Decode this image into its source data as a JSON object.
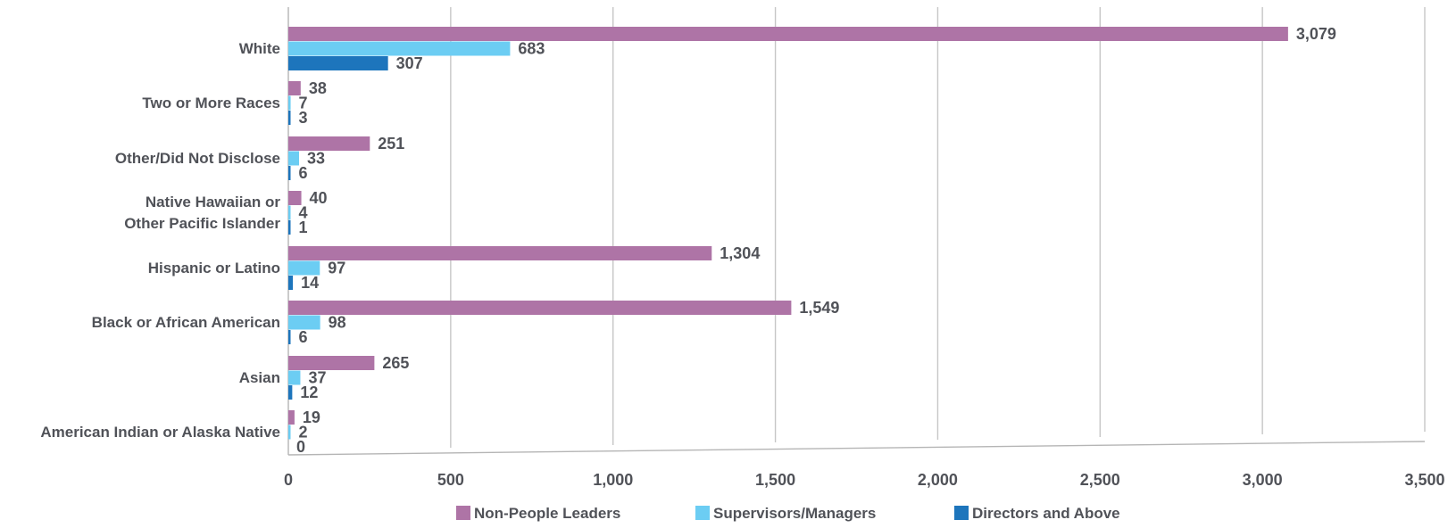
{
  "chart_data": {
    "type": "bar",
    "orientation": "horizontal",
    "categories": [
      "White",
      "Two or More Races",
      "Other/Did Not Disclose",
      "Native Hawaiian or Other Pacific Islander",
      "Hispanic or Latino",
      "Black or African American",
      "Asian",
      "American Indian or Alaska Native"
    ],
    "category_lines": [
      [
        "White"
      ],
      [
        "Two or More Races"
      ],
      [
        "Other/Did Not Disclose"
      ],
      [
        "Native Hawaiian or",
        "Other Pacific Islander"
      ],
      [
        "Hispanic or Latino"
      ],
      [
        "Black or African American"
      ],
      [
        "Asian"
      ],
      [
        "American Indian or Alaska Native"
      ]
    ],
    "series": [
      {
        "name": "Non-People Leaders",
        "color": "#ae74a6",
        "values": [
          3079,
          38,
          251,
          40,
          1304,
          1549,
          265,
          19
        ],
        "labels": [
          "3,079",
          "38",
          "251",
          "40",
          "1,304",
          "1,549",
          "265",
          "19"
        ]
      },
      {
        "name": "Supervisors/Managers",
        "color": "#6ccdf3",
        "values": [
          683,
          7,
          33,
          4,
          97,
          98,
          37,
          2
        ],
        "labels": [
          "683",
          "7",
          "33",
          "4",
          "97",
          "98",
          "37",
          "2"
        ]
      },
      {
        "name": "Directors and Above",
        "color": "#1d75bc",
        "values": [
          307,
          3,
          6,
          1,
          14,
          6,
          12,
          0
        ],
        "labels": [
          "307",
          "3",
          "6",
          "1",
          "14",
          "6",
          "12",
          "0"
        ]
      }
    ],
    "x_ticks": [
      0,
      500,
      1000,
      1500,
      2000,
      2500,
      3000,
      3500
    ],
    "x_tick_labels": [
      "0",
      "500",
      "1,000",
      "1,500",
      "2,000",
      "2,500",
      "3,000",
      "3,500"
    ],
    "xlim": [
      0,
      3500
    ],
    "grid": true,
    "legend_position": "bottom",
    "text_color": "#505258"
  }
}
